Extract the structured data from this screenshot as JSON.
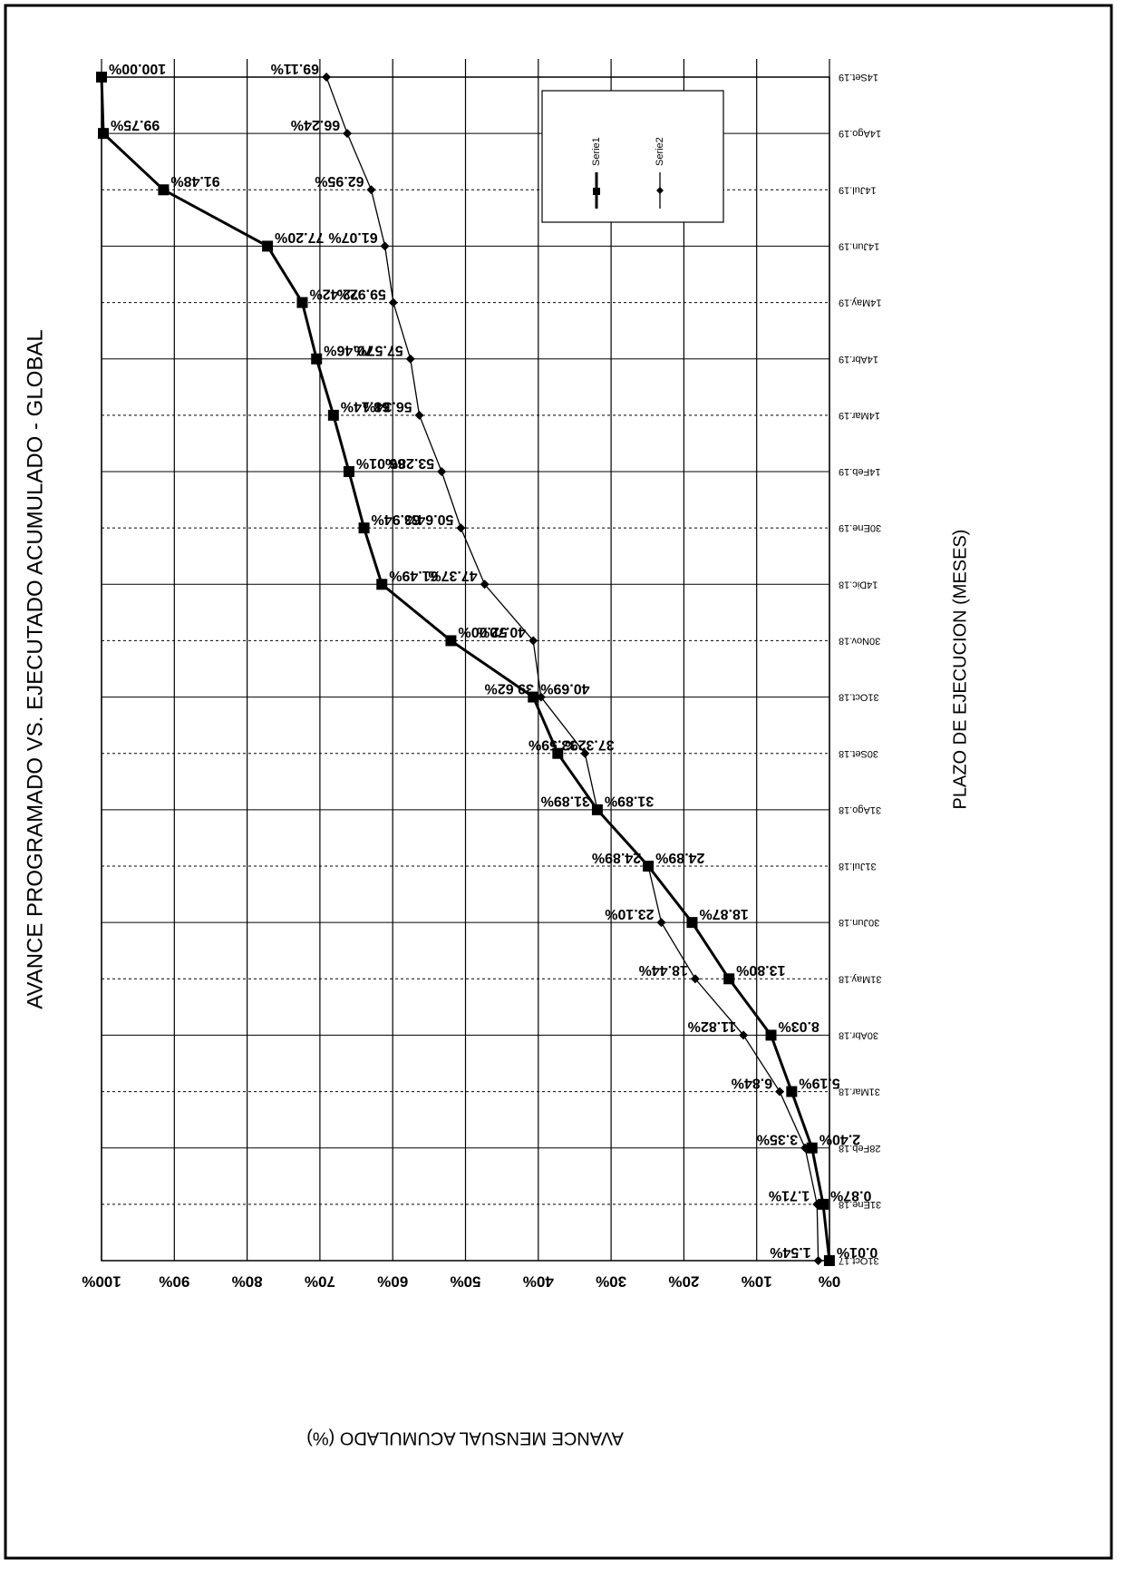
{
  "chart_data": {
    "type": "line",
    "title": "AVANCE PROGRAMADO VS. EJECUTADO ACUMULADO - GLOBAL",
    "x_label": "PLAZO DE EJECUCION (MESES)",
    "y_label": "AVANCE MENSUAL ACUMULADO (%)",
    "categories": [
      "31Oct.17",
      "31Ene.18",
      "28Feb.18",
      "31Mar.18",
      "30Abr.18",
      "31May.18",
      "30Jun.18",
      "31Jul.18",
      "31Ago.18",
      "30Set.18",
      "31Oct.18",
      "30Nov.18",
      "14Dic.18",
      "30Ene.19",
      "14Feb.19",
      "14Mar.19",
      "14Abr.19",
      "14May.19",
      "14Jun.19",
      "14Jul.19",
      "14Ago.19",
      "14Set.19"
    ],
    "series": [
      {
        "name": "Serie1",
        "color": "#000000",
        "marker": "square",
        "values": [
          0.01,
          0.87,
          2.4,
          5.19,
          8.03,
          13.8,
          18.87,
          24.89,
          31.89,
          37.32,
          40.69,
          52.0,
          61.49,
          63.94,
          66.01,
          68.14,
          70.46,
          72.42,
          77.2,
          91.48,
          99.75,
          100.0
        ],
        "value_labels": [
          "0.01%",
          "0.87%",
          "2.40%",
          "5.19%",
          "8.03%",
          "13.80%",
          "18.87%",
          "24.89%",
          "31.89%",
          "37.32%",
          "40.69%",
          "52.00%",
          "61.49%",
          "63.94%",
          "66.01%",
          "68.14%",
          "70.46%",
          "72.42%",
          "77.20%",
          "91.48%",
          "99.75%",
          "100.00%"
        ]
      },
      {
        "name": "Serie2",
        "color": "#000000",
        "marker": "diamond",
        "values": [
          1.54,
          1.71,
          3.35,
          6.84,
          11.82,
          18.44,
          23.1,
          24.89,
          31.89,
          33.59,
          39.62,
          40.7,
          47.37,
          50.64,
          53.28,
          56.34,
          57.57,
          59.92,
          61.07,
          62.95,
          66.24,
          69.11
        ],
        "value_labels": [
          "1.54%",
          "1.71%",
          "3.35%",
          "6.84%",
          "11.82%",
          "18.44%",
          "23.10%",
          "24.89%",
          "31.89%",
          "33.59%",
          "39.62%",
          "40.70%",
          "47.37%",
          "50.64%",
          "53.28%",
          "56.34%",
          "57.57%",
          "59.92%",
          "61.07%",
          "62.95%",
          "66.24%",
          "69.11%"
        ]
      }
    ],
    "ylim": [
      0,
      100
    ],
    "yticks": [
      {
        "value": 0,
        "label": "0%"
      },
      {
        "value": 10,
        "label": "10%"
      },
      {
        "value": 20,
        "label": "20%"
      },
      {
        "value": 30,
        "label": "30%"
      },
      {
        "value": 40,
        "label": "40%"
      },
      {
        "value": 50,
        "label": "50%"
      },
      {
        "value": 60,
        "label": "60%"
      },
      {
        "value": 70,
        "label": "70%"
      },
      {
        "value": 80,
        "label": "80%"
      },
      {
        "value": 90,
        "label": "90%"
      },
      {
        "value": 100,
        "label": "100%"
      }
    ],
    "grid": true,
    "legend": "upper right"
  }
}
